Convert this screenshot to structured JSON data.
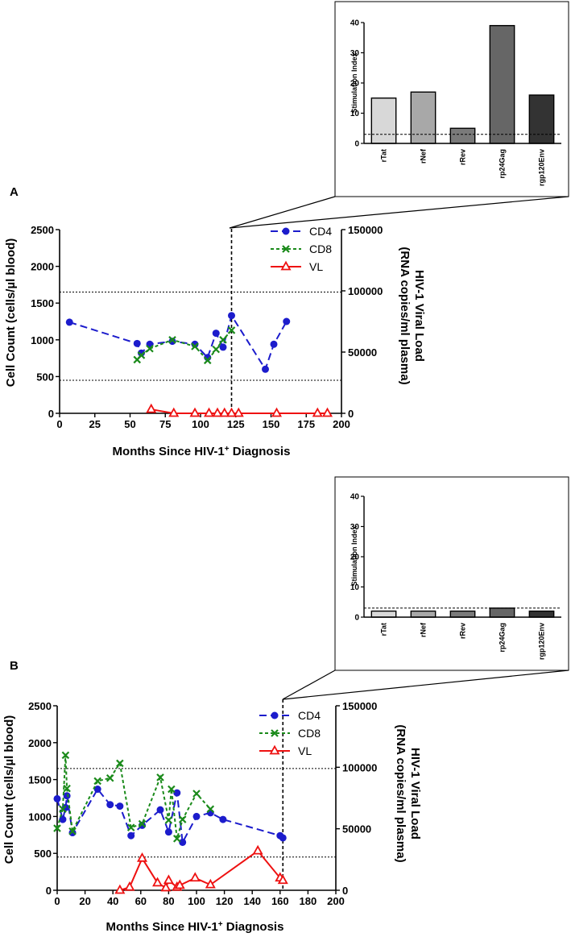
{
  "panels": [
    {
      "label": "A",
      "main": {
        "xlabel_pre": "Months Since HIV-1",
        "xlabel_sup": "+",
        "xlabel_post": " Diagnosis",
        "ylabel_left": "Cell Count (cells/µl blood)",
        "ylabel_right_1": "HIV-1 Viral Load",
        "ylabel_right_2": "(RNA copies/ml plasma)",
        "legend": [
          "CD4",
          "CD8",
          "VL"
        ]
      },
      "inset": {
        "ylabel": "Stimulation Index"
      }
    },
    {
      "label": "B",
      "main": {
        "xlabel_pre": "Months Since HIV-1",
        "xlabel_sup": "+",
        "xlabel_post": " Diagnosis",
        "ylabel_left": "Cell Count (cells/µl blood)",
        "ylabel_right_1": "HIV-1 Viral Load",
        "ylabel_right_2": "(RNA copies/ml plasma)",
        "legend": [
          "CD4",
          "CD8",
          "VL"
        ]
      },
      "inset": {
        "ylabel": "Stimulation Index"
      }
    }
  ],
  "chart_data": [
    {
      "type": "line",
      "panel": "A",
      "xlabel": "Months Since HIV-1+ Diagnosis",
      "ylabel": "Cell Count (cells/µl blood)",
      "y2label": "HIV-1 Viral Load (RNA copies/ml plasma)",
      "xlim": [
        0,
        200
      ],
      "ylim": [
        0,
        2500
      ],
      "y2lim": [
        0,
        150000
      ],
      "xticks": [
        0,
        25,
        50,
        75,
        100,
        125,
        150,
        175,
        200
      ],
      "yticks": [
        0,
        500,
        1000,
        1500,
        2000,
        2500
      ],
      "y2ticks": [
        0,
        50000,
        100000,
        150000
      ],
      "reference_lines_y": [
        450,
        1650
      ],
      "vline_x": 122,
      "series": [
        {
          "name": "CD4",
          "color": "#1c1ccc",
          "axis": "left",
          "x": [
            7,
            55,
            58,
            64,
            80,
            96,
            105,
            111,
            116,
            122,
            146,
            152,
            161
          ],
          "y": [
            1240,
            950,
            820,
            940,
            980,
            940,
            760,
            1090,
            900,
            1330,
            600,
            940,
            1250
          ]
        },
        {
          "name": "CD8",
          "color": "#1a8a1a",
          "axis": "left",
          "x": [
            55,
            58,
            64,
            80,
            96,
            105,
            111,
            116,
            122
          ],
          "y": [
            730,
            790,
            880,
            1000,
            910,
            720,
            870,
            1000,
            1130
          ]
        },
        {
          "name": "VL",
          "color": "#ee1111",
          "axis": "right",
          "x": [
            65,
            81,
            96,
            106,
            112,
            117,
            122,
            127,
            154,
            183,
            190
          ],
          "y": [
            3200,
            0,
            0,
            0,
            0,
            0,
            0,
            0,
            0,
            0,
            0
          ]
        }
      ]
    },
    {
      "type": "bar",
      "panel": "A inset",
      "categories": [
        "rTat",
        "rNef",
        "rRev",
        "rp24Gag",
        "rgp120Env"
      ],
      "values": [
        15,
        17,
        5,
        39,
        16
      ],
      "colors": [
        "#d8d8d8",
        "#a8a8a8",
        "#7a7a7a",
        "#666666",
        "#333333"
      ],
      "ylabel": "Stimulation Index",
      "ylim": [
        0,
        40
      ],
      "yticks": [
        0,
        10,
        20,
        30,
        40
      ],
      "threshold": 3
    },
    {
      "type": "line",
      "panel": "B",
      "xlabel": "Months Since HIV-1+ Diagnosis",
      "ylabel": "Cell Count (cells/µl blood)",
      "y2label": "HIV-1 Viral Load (RNA copies/ml plasma)",
      "xlim": [
        0,
        200
      ],
      "ylim": [
        0,
        2500
      ],
      "y2lim": [
        0,
        150000
      ],
      "xticks": [
        0,
        20,
        40,
        60,
        80,
        100,
        120,
        140,
        160,
        180,
        200
      ],
      "yticks": [
        0,
        500,
        1000,
        1500,
        2000,
        2500
      ],
      "y2ticks": [
        0,
        50000,
        100000,
        150000
      ],
      "reference_lines_y": [
        450,
        1650
      ],
      "vline_x": 162,
      "series": [
        {
          "name": "CD4",
          "color": "#1c1ccc",
          "axis": "left",
          "x": [
            0,
            4,
            6,
            7,
            11,
            29,
            38,
            45,
            53,
            61,
            74,
            80,
            86,
            90,
            100,
            110,
            119,
            160,
            162
          ],
          "y": [
            1240,
            960,
            1120,
            1280,
            780,
            1370,
            1160,
            1140,
            740,
            880,
            1090,
            790,
            1320,
            650,
            1000,
            1050,
            960,
            740,
            710
          ]
        },
        {
          "name": "CD8",
          "color": "#1a8a1a",
          "axis": "left",
          "x": [
            0,
            4,
            6,
            7,
            11,
            29,
            38,
            45,
            53,
            61,
            74,
            80,
            82,
            86,
            90,
            100,
            110
          ],
          "y": [
            840,
            1100,
            1830,
            1380,
            800,
            1480,
            1520,
            1720,
            850,
            900,
            1530,
            950,
            1370,
            700,
            960,
            1310,
            1100
          ]
        },
        {
          "name": "VL",
          "color": "#ee1111",
          "axis": "right",
          "x": [
            45,
            52,
            61,
            72,
            78,
            80,
            86,
            88,
            99,
            110,
            144,
            160,
            162
          ],
          "y": [
            0,
            2500,
            26000,
            6000,
            2000,
            8000,
            2500,
            4000,
            10000,
            4500,
            32000,
            10000,
            8000
          ]
        }
      ]
    },
    {
      "type": "bar",
      "panel": "B inset",
      "categories": [
        "rTat",
        "rNef",
        "rRev",
        "rp24Gag",
        "rgp120Env"
      ],
      "values": [
        2,
        2,
        2,
        3,
        2
      ],
      "colors": [
        "#d8d8d8",
        "#a8a8a8",
        "#7a7a7a",
        "#666666",
        "#333333"
      ],
      "ylabel": "Stimulation Index",
      "ylim": [
        0,
        40
      ],
      "yticks": [
        0,
        10,
        20,
        30,
        40
      ],
      "threshold": 3
    }
  ]
}
